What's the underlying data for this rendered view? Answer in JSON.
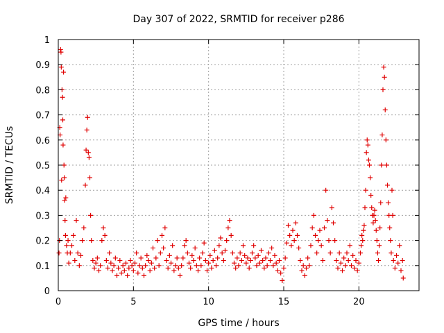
{
  "chart_data": {
    "type": "scatter",
    "title": "Day 307 of 2022, SRMTID for receiver p286",
    "xlabel": "GPS time / hours",
    "ylabel": "SRMTID / TECUs",
    "xlim": [
      0,
      24
    ],
    "ylim": [
      0,
      1
    ],
    "xticks": [
      0,
      5,
      10,
      15,
      20
    ],
    "yticks": [
      0,
      0.1,
      0.2,
      0.3,
      0.4,
      0.5,
      0.6,
      0.7,
      0.8,
      0.9,
      1
    ],
    "xtick_labels": [
      "0",
      "5",
      "10",
      "15",
      "20"
    ],
    "ytick_labels": [
      "0",
      "0.1",
      "0.2",
      "0.3",
      "0.4",
      "0.5",
      "0.6",
      "0.7",
      "0.8",
      "0.9",
      "1"
    ],
    "grid": true,
    "marker": "+",
    "color": "#e00000",
    "series": [
      {
        "name": "SRMTID",
        "points": [
          [
            0.05,
            0.15
          ],
          [
            0.08,
            0.2
          ],
          [
            0.1,
            0.65
          ],
          [
            0.12,
            0.62
          ],
          [
            0.15,
            0.96
          ],
          [
            0.18,
            0.95
          ],
          [
            0.2,
            0.89
          ],
          [
            0.22,
            0.44
          ],
          [
            0.25,
            0.8
          ],
          [
            0.28,
            0.77
          ],
          [
            0.3,
            0.68
          ],
          [
            0.32,
            0.58
          ],
          [
            0.35,
            0.87
          ],
          [
            0.38,
            0.5
          ],
          [
            0.4,
            0.45
          ],
          [
            0.42,
            0.36
          ],
          [
            0.45,
            0.28
          ],
          [
            0.48,
            0.22
          ],
          [
            0.5,
            0.37
          ],
          [
            0.55,
            0.18
          ],
          [
            0.6,
            0.15
          ],
          [
            0.65,
            0.2
          ],
          [
            0.7,
            0.11
          ],
          [
            0.8,
            0.15
          ],
          [
            0.9,
            0.18
          ],
          [
            1.0,
            0.22
          ],
          [
            1.1,
            0.12
          ],
          [
            1.2,
            0.28
          ],
          [
            1.3,
            0.15
          ],
          [
            1.4,
            0.1
          ],
          [
            1.5,
            0.14
          ],
          [
            1.6,
            0.2
          ],
          [
            1.7,
            0.25
          ],
          [
            1.8,
            0.42
          ],
          [
            1.85,
            0.56
          ],
          [
            1.9,
            0.64
          ],
          [
            1.95,
            0.69
          ],
          [
            2.0,
            0.55
          ],
          [
            2.05,
            0.53
          ],
          [
            2.1,
            0.45
          ],
          [
            2.15,
            0.3
          ],
          [
            2.2,
            0.2
          ],
          [
            2.3,
            0.12
          ],
          [
            2.4,
            0.09
          ],
          [
            2.5,
            0.11
          ],
          [
            2.6,
            0.13
          ],
          [
            2.7,
            0.08
          ],
          [
            2.8,
            0.1
          ],
          [
            2.9,
            0.2
          ],
          [
            3.0,
            0.25
          ],
          [
            3.1,
            0.22
          ],
          [
            3.2,
            0.12
          ],
          [
            3.3,
            0.09
          ],
          [
            3.4,
            0.15
          ],
          [
            3.5,
            0.11
          ],
          [
            3.6,
            0.08
          ],
          [
            3.7,
            0.1
          ],
          [
            3.8,
            0.13
          ],
          [
            3.9,
            0.06
          ],
          [
            4.0,
            0.09
          ],
          [
            4.1,
            0.12
          ],
          [
            4.2,
            0.07
          ],
          [
            4.3,
            0.1
          ],
          [
            4.4,
            0.08
          ],
          [
            4.5,
            0.11
          ],
          [
            4.6,
            0.06
          ],
          [
            4.7,
            0.09
          ],
          [
            4.8,
            0.12
          ],
          [
            4.9,
            0.1
          ],
          [
            5.0,
            0.08
          ],
          [
            5.1,
            0.11
          ],
          [
            5.2,
            0.15
          ],
          [
            5.3,
            0.07
          ],
          [
            5.4,
            0.1
          ],
          [
            5.5,
            0.13
          ],
          [
            5.6,
            0.09
          ],
          [
            5.7,
            0.06
          ],
          [
            5.8,
            0.1
          ],
          [
            5.9,
            0.14
          ],
          [
            6.0,
            0.12
          ],
          [
            6.1,
            0.08
          ],
          [
            6.2,
            0.11
          ],
          [
            6.3,
            0.17
          ],
          [
            6.4,
            0.09
          ],
          [
            6.5,
            0.13
          ],
          [
            6.6,
            0.2
          ],
          [
            6.7,
            0.1
          ],
          [
            6.8,
            0.15
          ],
          [
            6.9,
            0.22
          ],
          [
            7.0,
            0.17
          ],
          [
            7.1,
            0.25
          ],
          [
            7.2,
            0.12
          ],
          [
            7.3,
            0.09
          ],
          [
            7.4,
            0.14
          ],
          [
            7.5,
            0.11
          ],
          [
            7.6,
            0.18
          ],
          [
            7.7,
            0.08
          ],
          [
            7.8,
            0.1
          ],
          [
            7.9,
            0.13
          ],
          [
            8.0,
            0.09
          ],
          [
            8.1,
            0.06
          ],
          [
            8.2,
            0.1
          ],
          [
            8.3,
            0.13
          ],
          [
            8.4,
            0.18
          ],
          [
            8.5,
            0.2
          ],
          [
            8.6,
            0.15
          ],
          [
            8.7,
            0.11
          ],
          [
            8.8,
            0.09
          ],
          [
            8.9,
            0.14
          ],
          [
            9.0,
            0.12
          ],
          [
            9.1,
            0.17
          ],
          [
            9.2,
            0.1
          ],
          [
            9.3,
            0.08
          ],
          [
            9.4,
            0.13
          ],
          [
            9.5,
            0.1
          ],
          [
            9.6,
            0.15
          ],
          [
            9.7,
            0.19
          ],
          [
            9.8,
            0.12
          ],
          [
            9.9,
            0.08
          ],
          [
            10.0,
            0.11
          ],
          [
            10.1,
            0.14
          ],
          [
            10.2,
            0.09
          ],
          [
            10.3,
            0.12
          ],
          [
            10.4,
            0.16
          ],
          [
            10.5,
            0.1
          ],
          [
            10.6,
            0.13
          ],
          [
            10.7,
            0.18
          ],
          [
            10.8,
            0.21
          ],
          [
            10.9,
            0.15
          ],
          [
            11.0,
            0.12
          ],
          [
            11.1,
            0.16
          ],
          [
            11.2,
            0.2
          ],
          [
            11.3,
            0.25
          ],
          [
            11.4,
            0.28
          ],
          [
            11.5,
            0.22
          ],
          [
            11.6,
            0.15
          ],
          [
            11.7,
            0.11
          ],
          [
            11.8,
            0.09
          ],
          [
            11.9,
            0.13
          ],
          [
            12.0,
            0.1
          ],
          [
            12.1,
            0.15
          ],
          [
            12.2,
            0.12
          ],
          [
            12.3,
            0.18
          ],
          [
            12.4,
            0.14
          ],
          [
            12.5,
            0.11
          ],
          [
            12.6,
            0.13
          ],
          [
            12.7,
            0.09
          ],
          [
            12.8,
            0.12
          ],
          [
            12.9,
            0.15
          ],
          [
            13.0,
            0.18
          ],
          [
            13.1,
            0.13
          ],
          [
            13.2,
            0.1
          ],
          [
            13.3,
            0.14
          ],
          [
            13.4,
            0.11
          ],
          [
            13.5,
            0.16
          ],
          [
            13.6,
            0.12
          ],
          [
            13.7,
            0.09
          ],
          [
            13.8,
            0.13
          ],
          [
            13.9,
            0.1
          ],
          [
            14.0,
            0.15
          ],
          [
            14.1,
            0.12
          ],
          [
            14.2,
            0.17
          ],
          [
            14.3,
            0.1
          ],
          [
            14.4,
            0.14
          ],
          [
            14.5,
            0.11
          ],
          [
            14.6,
            0.08
          ],
          [
            14.7,
            0.12
          ],
          [
            14.8,
            0.07
          ],
          [
            14.9,
            0.04
          ],
          [
            15.0,
            0.09
          ],
          [
            15.1,
            0.13
          ],
          [
            15.2,
            0.19
          ],
          [
            15.3,
            0.26
          ],
          [
            15.4,
            0.22
          ],
          [
            15.5,
            0.18
          ],
          [
            15.6,
            0.24
          ],
          [
            15.7,
            0.2
          ],
          [
            15.8,
            0.27
          ],
          [
            15.9,
            0.22
          ],
          [
            16.0,
            0.17
          ],
          [
            16.1,
            0.12
          ],
          [
            16.2,
            0.08
          ],
          [
            16.3,
            0.1
          ],
          [
            16.4,
            0.06
          ],
          [
            16.5,
            0.09
          ],
          [
            16.6,
            0.13
          ],
          [
            16.7,
            0.1
          ],
          [
            16.8,
            0.18
          ],
          [
            16.9,
            0.25
          ],
          [
            17.0,
            0.3
          ],
          [
            17.1,
            0.22
          ],
          [
            17.2,
            0.15
          ],
          [
            17.3,
            0.2
          ],
          [
            17.4,
            0.24
          ],
          [
            17.5,
            0.18
          ],
          [
            17.6,
            0.12
          ],
          [
            17.7,
            0.25
          ],
          [
            17.8,
            0.4
          ],
          [
            17.9,
            0.28
          ],
          [
            18.0,
            0.2
          ],
          [
            18.1,
            0.15
          ],
          [
            18.2,
            0.33
          ],
          [
            18.3,
            0.27
          ],
          [
            18.4,
            0.2
          ],
          [
            18.5,
            0.12
          ],
          [
            18.6,
            0.09
          ],
          [
            18.7,
            0.15
          ],
          [
            18.8,
            0.11
          ],
          [
            18.9,
            0.08
          ],
          [
            19.0,
            0.13
          ],
          [
            19.1,
            0.1
          ],
          [
            19.2,
            0.15
          ],
          [
            19.3,
            0.12
          ],
          [
            19.4,
            0.18
          ],
          [
            19.5,
            0.1
          ],
          [
            19.6,
            0.14
          ],
          [
            19.7,
            0.09
          ],
          [
            19.8,
            0.12
          ],
          [
            19.9,
            0.08
          ],
          [
            20.0,
            0.11
          ],
          [
            20.1,
            0.15
          ],
          [
            20.15,
            0.18
          ],
          [
            20.2,
            0.22
          ],
          [
            20.25,
            0.2
          ],
          [
            20.3,
            0.24
          ],
          [
            20.35,
            0.26
          ],
          [
            20.4,
            0.33
          ],
          [
            20.45,
            0.4
          ],
          [
            20.5,
            0.55
          ],
          [
            20.55,
            0.6
          ],
          [
            20.6,
            0.58
          ],
          [
            20.65,
            0.52
          ],
          [
            20.7,
            0.5
          ],
          [
            20.75,
            0.45
          ],
          [
            20.8,
            0.38
          ],
          [
            20.85,
            0.33
          ],
          [
            20.9,
            0.3
          ],
          [
            20.95,
            0.27
          ],
          [
            21.0,
            0.3
          ],
          [
            21.05,
            0.32
          ],
          [
            21.1,
            0.28
          ],
          [
            21.15,
            0.24
          ],
          [
            21.2,
            0.2
          ],
          [
            21.25,
            0.15
          ],
          [
            21.3,
            0.12
          ],
          [
            21.35,
            0.18
          ],
          [
            21.4,
            0.25
          ],
          [
            21.45,
            0.35
          ],
          [
            21.5,
            0.5
          ],
          [
            21.55,
            0.62
          ],
          [
            21.6,
            0.8
          ],
          [
            21.65,
            0.89
          ],
          [
            21.7,
            0.85
          ],
          [
            21.75,
            0.72
          ],
          [
            21.8,
            0.6
          ],
          [
            21.85,
            0.5
          ],
          [
            21.9,
            0.42
          ],
          [
            21.95,
            0.35
          ],
          [
            22.0,
            0.3
          ],
          [
            22.05,
            0.25
          ],
          [
            22.1,
            0.2
          ],
          [
            22.15,
            0.15
          ],
          [
            22.2,
            0.4
          ],
          [
            22.25,
            0.3
          ],
          [
            22.3,
            0.12
          ],
          [
            22.4,
            0.09
          ],
          [
            22.5,
            0.14
          ],
          [
            22.6,
            0.11
          ],
          [
            22.7,
            0.18
          ],
          [
            22.8,
            0.08
          ],
          [
            22.9,
            0.12
          ],
          [
            22.95,
            0.05
          ]
        ]
      }
    ]
  }
}
